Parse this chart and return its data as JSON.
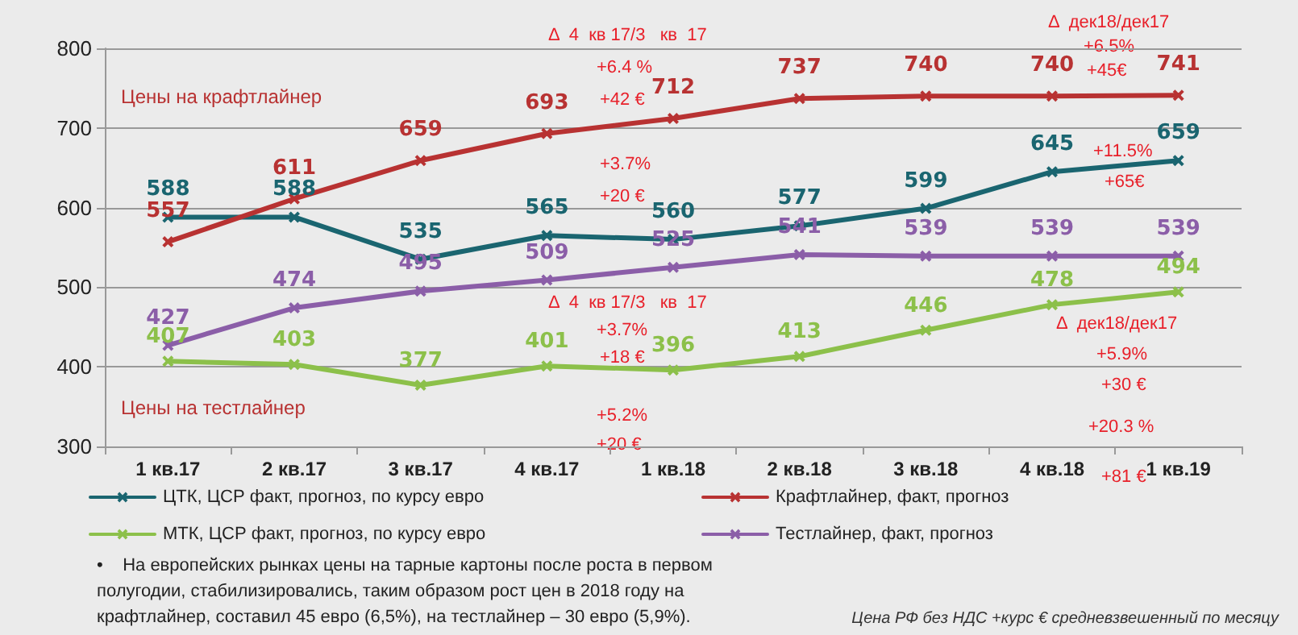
{
  "chart_data": {
    "type": "line",
    "categories": [
      "1 кв.17",
      "2 кв.17",
      "3 кв.17",
      "4 кв.17",
      "1 кв.18",
      "2 кв.18",
      "3 кв.18",
      "4 кв.18",
      "1 кв.19"
    ],
    "series": [
      {
        "name": "ЦТК, ЦСР факт, прогноз, по курсу евро",
        "color": "#1a6570",
        "values": [
          588,
          588,
          535,
          565,
          560,
          577,
          599,
          645,
          659
        ]
      },
      {
        "name": "Крафтлайнер, факт, прогноз",
        "color": "#b83232",
        "values": [
          557,
          611,
          659,
          693,
          712,
          737,
          740,
          740,
          741
        ]
      },
      {
        "name": "МТК, ЦСР факт, прогноз, по курсу евро",
        "color": "#8cc04a",
        "values": [
          407,
          403,
          377,
          401,
          396,
          413,
          446,
          478,
          494
        ]
      },
      {
        "name": "Тестлайнер, факт, прогноз",
        "color": "#8b5ea8",
        "values": [
          427,
          474,
          495,
          509,
          525,
          541,
          539,
          539,
          539
        ]
      }
    ],
    "ylim": [
      300,
      800
    ],
    "yticks": [
      300,
      400,
      500,
      600,
      700,
      800
    ],
    "grid": "y",
    "legend": "bottom",
    "marker": "cross",
    "line_style": "solid",
    "data_labels": true,
    "annotations": [
      "Цены на крафтлайнер",
      "Цены на тестлайнер",
      "Δ  4  кв 17/3   кв  17",
      "+6.4 %",
      "+42 €",
      "+3.7%",
      "+20 €",
      "Δ  4  кв 17/3   кв  17",
      "+3.7%",
      "+18 €",
      "+5.2%",
      "+20 €",
      "Δ  дек18/дек17",
      "+6.5%",
      "+45€",
      "+11.5%",
      "+65€",
      "Δ  дек18/дек17",
      "+5.9%",
      "+30 €",
      "+20.3 %",
      "+81 €",
      "•    На европейских рынках цены на тарные картоны после роста в первом полугодии, стабилизировались, таким образом рост цен в 2018 году на крафтлайнер, составил 45 евро (6,5%), на тестлайнер – 30 евро (5,9%).",
      "Цена РФ без НДС +курс € средневзвешенный по месяцу"
    ]
  }
}
